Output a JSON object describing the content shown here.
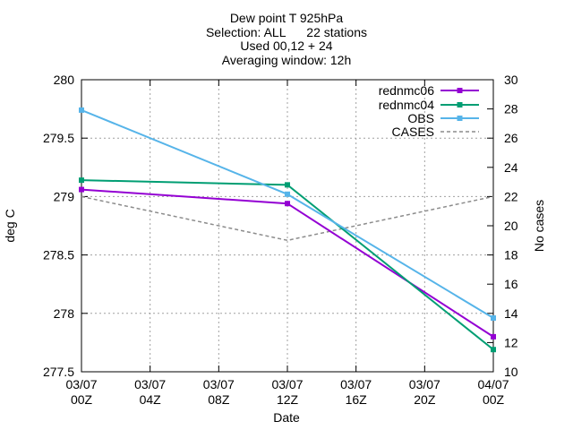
{
  "chart_data": {
    "type": "line",
    "title_lines": [
      "Dew point T 925hPa",
      "Selection: ALL      22 stations",
      "Used 00,12 + 24",
      "Averaging window: 12h"
    ],
    "xlabel": "Date",
    "ylabel": "deg C",
    "y2label": "No cases",
    "x_ticks": [
      {
        "hour": 0,
        "line1": "03/07",
        "line2": "00Z"
      },
      {
        "hour": 4,
        "line1": "03/07",
        "line2": "04Z"
      },
      {
        "hour": 8,
        "line1": "03/07",
        "line2": "08Z"
      },
      {
        "hour": 12,
        "line1": "03/07",
        "line2": "12Z"
      },
      {
        "hour": 16,
        "line1": "03/07",
        "line2": "16Z"
      },
      {
        "hour": 20,
        "line1": "03/07",
        "line2": "20Z"
      },
      {
        "hour": 24,
        "line1": "04/07",
        "line2": "00Z"
      }
    ],
    "xlim": [
      0,
      24
    ],
    "ylim": [
      277.5,
      280
    ],
    "yticks": [
      "277.5",
      "278",
      "278.5",
      "279",
      "279.5",
      "280"
    ],
    "y2lim": [
      10,
      30
    ],
    "y2ticks": [
      "10",
      "12",
      "14",
      "16",
      "18",
      "20",
      "22",
      "24",
      "26",
      "28",
      "30"
    ],
    "grid": true,
    "legend_position": "top-right",
    "series": [
      {
        "name": "rednmc06",
        "color": "#9400d3",
        "axis": "y1",
        "dash": false,
        "marker": true,
        "x": [
          0,
          12,
          24
        ],
        "y": [
          279.06,
          278.94,
          277.8
        ]
      },
      {
        "name": "rednmc04",
        "color": "#009e73",
        "axis": "y1",
        "dash": false,
        "marker": true,
        "x": [
          0,
          12,
          24
        ],
        "y": [
          279.14,
          279.1,
          277.69
        ]
      },
      {
        "name": "OBS",
        "color": "#56b4e9",
        "axis": "y1",
        "dash": false,
        "marker": true,
        "x": [
          0,
          12,
          24
        ],
        "y": [
          279.74,
          279.02,
          277.96
        ]
      },
      {
        "name": "CASES",
        "color": "#8c8c8c",
        "axis": "y2",
        "dash": true,
        "marker": false,
        "x": [
          0,
          12,
          24
        ],
        "y": [
          22,
          19,
          22
        ]
      }
    ]
  }
}
